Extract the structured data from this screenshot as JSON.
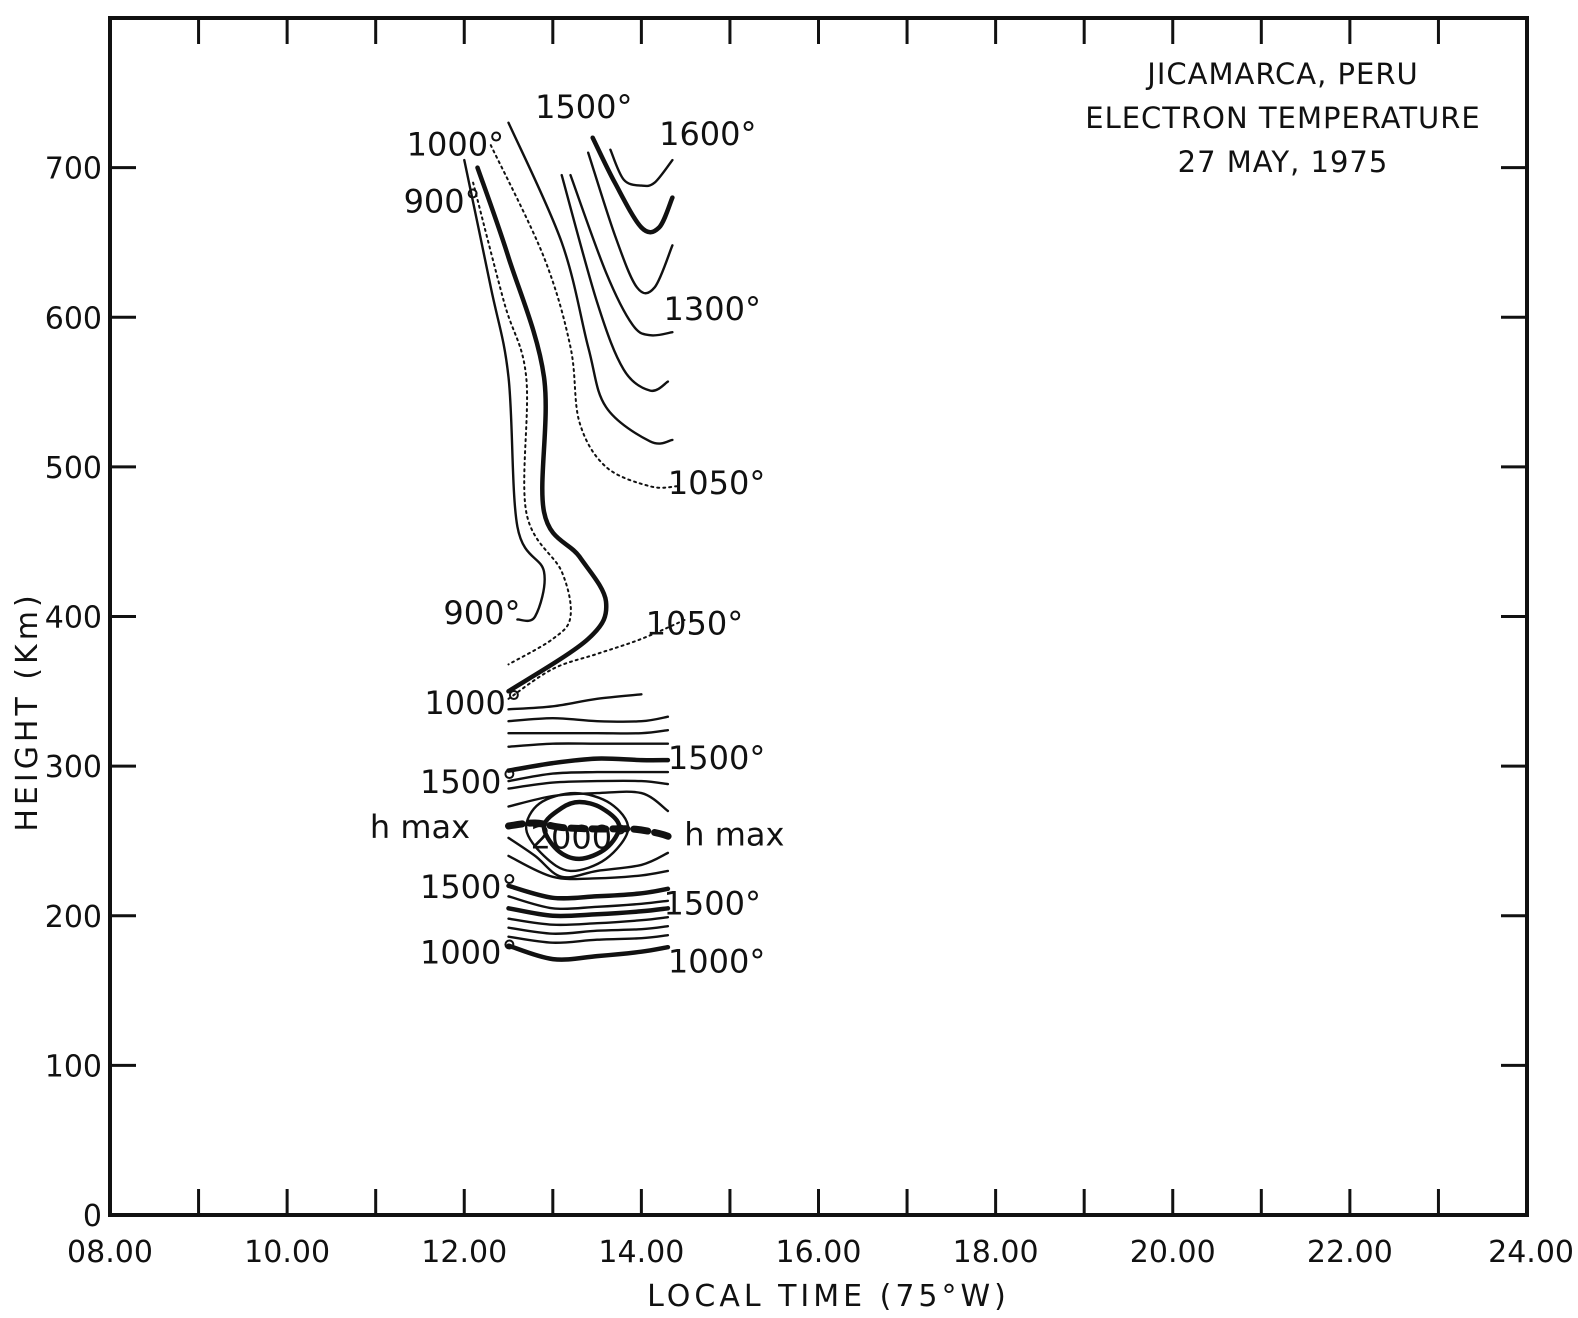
{
  "chart_data": {
    "type": "contour",
    "title": [
      "JICAMARCA, PERU",
      "ELECTRON TEMPERATURE",
      "27 MAY, 1975"
    ],
    "xlabel": "LOCAL TIME (75°W)",
    "ylabel": "HEIGHT (Km)",
    "xlim": [
      8,
      24
    ],
    "ylim": [
      0,
      800
    ],
    "x_ticks": [
      "08.00",
      "10.00",
      "12.00",
      "14.00",
      "16.00",
      "18.00",
      "20.00",
      "22.00",
      "24.00"
    ],
    "y_ticks": [
      "0",
      "100",
      "200",
      "300",
      "400",
      "500",
      "600",
      "700"
    ],
    "x_minor_step": 1,
    "y_minor_step": 100,
    "contours": [
      {
        "label": "900°",
        "style": "solid",
        "points": [
          [
            12.0,
            705
          ],
          [
            12.3,
            620
          ],
          [
            12.5,
            560
          ],
          [
            12.6,
            460
          ],
          [
            12.9,
            430
          ],
          [
            12.8,
            400
          ],
          [
            12.6,
            398
          ]
        ]
      },
      {
        "label": "",
        "style": "dotted",
        "points": [
          [
            12.1,
            690
          ],
          [
            12.45,
            610
          ],
          [
            12.7,
            560
          ],
          [
            12.7,
            470
          ],
          [
            13.1,
            430
          ],
          [
            13.2,
            400
          ],
          [
            13.0,
            385
          ],
          [
            12.5,
            368
          ]
        ]
      },
      {
        "label": "1000°",
        "style": "thick",
        "points": [
          [
            12.15,
            700
          ],
          [
            12.5,
            640
          ],
          [
            12.9,
            560
          ],
          [
            12.9,
            470
          ],
          [
            13.3,
            440
          ],
          [
            13.6,
            410
          ],
          [
            13.4,
            385
          ],
          [
            12.5,
            350
          ]
        ]
      },
      {
        "label": "",
        "style": "dotted",
        "points": [
          [
            12.3,
            715
          ],
          [
            12.9,
            640
          ],
          [
            13.2,
            580
          ],
          [
            13.3,
            530
          ],
          [
            13.6,
            500
          ],
          [
            14.1,
            487
          ],
          [
            14.4,
            487
          ]
        ]
      },
      {
        "label": "",
        "style": "solid",
        "points": [
          [
            12.5,
            730
          ],
          [
            13.1,
            650
          ],
          [
            13.4,
            580
          ],
          [
            13.6,
            540
          ],
          [
            14.1,
            517
          ],
          [
            14.35,
            518
          ]
        ]
      },
      {
        "label": "",
        "style": "solid",
        "points": [
          [
            13.1,
            695
          ],
          [
            13.5,
            610
          ],
          [
            13.8,
            565
          ],
          [
            14.1,
            551
          ],
          [
            14.3,
            557
          ]
        ]
      },
      {
        "label": "1300°",
        "style": "solid",
        "points": [
          [
            13.2,
            695
          ],
          [
            13.6,
            630
          ],
          [
            13.9,
            595
          ],
          [
            14.1,
            588
          ],
          [
            14.35,
            590
          ]
        ]
      },
      {
        "label": "",
        "style": "solid",
        "points": [
          [
            13.4,
            710
          ],
          [
            13.7,
            655
          ],
          [
            13.95,
            620
          ],
          [
            14.15,
            620
          ],
          [
            14.35,
            648
          ]
        ]
      },
      {
        "label": "1500°",
        "style": "thick",
        "points": [
          [
            13.45,
            720
          ],
          [
            13.7,
            690
          ],
          [
            14.0,
            660
          ],
          [
            14.2,
            660
          ],
          [
            14.35,
            680
          ]
        ]
      },
      {
        "label": "1600°",
        "style": "solid",
        "points": [
          [
            13.65,
            712
          ],
          [
            13.8,
            692
          ],
          [
            14.0,
            688
          ],
          [
            14.15,
            690
          ],
          [
            14.35,
            705
          ]
        ]
      },
      {
        "label": "1050°",
        "style": "dotted",
        "points": [
          [
            12.5,
            345
          ],
          [
            13.0,
            365
          ],
          [
            13.5,
            375
          ],
          [
            14.0,
            385
          ],
          [
            14.5,
            398
          ]
        ]
      },
      {
        "label": "",
        "style": "solid",
        "points": [
          [
            12.5,
            338
          ],
          [
            13.0,
            340
          ],
          [
            13.5,
            345
          ],
          [
            14.0,
            348
          ]
        ]
      },
      {
        "label": "",
        "style": "solid",
        "points": [
          [
            12.5,
            330
          ],
          [
            13.0,
            332
          ],
          [
            13.5,
            330
          ],
          [
            14.0,
            330
          ],
          [
            14.3,
            333
          ]
        ]
      },
      {
        "label": "",
        "style": "solid",
        "points": [
          [
            12.5,
            322
          ],
          [
            13.0,
            322
          ],
          [
            13.5,
            322
          ],
          [
            14.0,
            322
          ],
          [
            14.3,
            324
          ]
        ]
      },
      {
        "label": "",
        "style": "solid",
        "points": [
          [
            12.5,
            313
          ],
          [
            13.0,
            315
          ],
          [
            13.5,
            315
          ],
          [
            14.0,
            315
          ],
          [
            14.3,
            315
          ]
        ]
      },
      {
        "label": "1500°",
        "style": "thick",
        "points": [
          [
            12.5,
            297
          ],
          [
            13.0,
            302
          ],
          [
            13.5,
            305
          ],
          [
            14.0,
            304
          ],
          [
            14.3,
            304
          ]
        ]
      },
      {
        "label": "",
        "style": "solid",
        "points": [
          [
            12.5,
            290
          ],
          [
            13.0,
            295
          ],
          [
            13.5,
            296
          ],
          [
            14.0,
            296
          ],
          [
            14.3,
            296
          ]
        ]
      },
      {
        "label": "",
        "style": "solid",
        "points": [
          [
            12.5,
            285
          ],
          [
            13.0,
            289
          ],
          [
            13.5,
            290
          ],
          [
            14.0,
            290
          ],
          [
            14.3,
            288
          ]
        ]
      },
      {
        "label": "",
        "style": "solid",
        "points": [
          [
            12.5,
            273
          ],
          [
            13.0,
            280
          ],
          [
            13.5,
            282
          ],
          [
            14.0,
            282
          ],
          [
            14.3,
            270
          ]
        ]
      },
      {
        "label": "2000°",
        "style": "thick",
        "closed": true,
        "points": [
          [
            12.9,
            260
          ],
          [
            13.1,
            272
          ],
          [
            13.3,
            276
          ],
          [
            13.55,
            272
          ],
          [
            13.75,
            260
          ],
          [
            13.6,
            245
          ],
          [
            13.3,
            238
          ],
          [
            13.05,
            244
          ]
        ]
      },
      {
        "label": "",
        "style": "solid",
        "closed": true,
        "points": [
          [
            12.7,
            258
          ],
          [
            12.85,
            275
          ],
          [
            13.25,
            282
          ],
          [
            13.65,
            275
          ],
          [
            13.85,
            258
          ],
          [
            13.6,
            238
          ],
          [
            13.2,
            230
          ],
          [
            12.9,
            240
          ]
        ]
      },
      {
        "label": "",
        "style": "solid",
        "points": [
          [
            12.5,
            252
          ],
          [
            12.8,
            240
          ],
          [
            13.1,
            226
          ],
          [
            13.5,
            230
          ],
          [
            14.0,
            234
          ],
          [
            14.3,
            242
          ]
        ]
      },
      {
        "label": "",
        "style": "solid",
        "points": [
          [
            12.5,
            240
          ],
          [
            13.0,
            226
          ],
          [
            13.5,
            225
          ],
          [
            14.0,
            227
          ],
          [
            14.3,
            230
          ]
        ]
      },
      {
        "label": "1500°",
        "style": "thick",
        "points": [
          [
            12.5,
            220
          ],
          [
            13.0,
            212
          ],
          [
            13.5,
            213
          ],
          [
            14.0,
            215
          ],
          [
            14.3,
            218
          ]
        ]
      },
      {
        "label": "",
        "style": "solid",
        "points": [
          [
            12.5,
            213
          ],
          [
            13.0,
            205
          ],
          [
            13.5,
            206
          ],
          [
            14.0,
            208
          ],
          [
            14.3,
            210
          ]
        ]
      },
      {
        "label": "",
        "style": "thick",
        "points": [
          [
            12.5,
            205
          ],
          [
            13.0,
            200
          ],
          [
            13.5,
            201
          ],
          [
            14.0,
            203
          ],
          [
            14.3,
            205
          ]
        ]
      },
      {
        "label": "",
        "style": "solid",
        "points": [
          [
            12.5,
            198
          ],
          [
            13.0,
            194
          ],
          [
            13.5,
            195
          ],
          [
            14.0,
            197
          ],
          [
            14.3,
            199
          ]
        ]
      },
      {
        "label": "",
        "style": "solid",
        "points": [
          [
            12.5,
            192
          ],
          [
            13.0,
            188
          ],
          [
            13.5,
            190
          ],
          [
            14.0,
            191
          ],
          [
            14.3,
            193
          ]
        ]
      },
      {
        "label": "",
        "style": "solid",
        "points": [
          [
            12.5,
            186
          ],
          [
            13.0,
            182
          ],
          [
            13.5,
            184
          ],
          [
            14.0,
            185
          ],
          [
            14.3,
            187
          ]
        ]
      },
      {
        "label": "1000°",
        "style": "thick",
        "points": [
          [
            12.5,
            180
          ],
          [
            13.0,
            171
          ],
          [
            13.5,
            173
          ],
          [
            14.0,
            176
          ],
          [
            14.3,
            179
          ]
        ]
      }
    ],
    "hmax": {
      "label": "h max",
      "points": [
        [
          12.5,
          260
        ],
        [
          12.8,
          262
        ],
        [
          13.1,
          259
        ],
        [
          13.5,
          258
        ],
        [
          13.9,
          258
        ],
        [
          14.2,
          255
        ],
        [
          14.35,
          252
        ]
      ]
    },
    "labels": [
      {
        "text": "1000°",
        "x": 11.9,
        "y": 708
      },
      {
        "text": "900°",
        "x": 11.75,
        "y": 670
      },
      {
        "text": "1500°",
        "x": 13.35,
        "y": 733
      },
      {
        "text": "1600°",
        "x": 14.75,
        "y": 715
      },
      {
        "text": "1300°",
        "x": 14.8,
        "y": 598
      },
      {
        "text": "1050°",
        "x": 14.85,
        "y": 482
      },
      {
        "text": "900°",
        "x": 12.2,
        "y": 395
      },
      {
        "text": "1050°",
        "x": 14.6,
        "y": 388
      },
      {
        "text": "1000°",
        "x": 12.1,
        "y": 335
      },
      {
        "text": "1500°",
        "x": 12.05,
        "y": 282
      },
      {
        "text": "1500°",
        "x": 14.85,
        "y": 298
      },
      {
        "text": "h max",
        "x": 11.5,
        "y": 252
      },
      {
        "text": "h max",
        "x": 15.05,
        "y": 247
      },
      {
        "text": "2000°",
        "x": 13.3,
        "y": 245
      },
      {
        "text": "1500°",
        "x": 12.05,
        "y": 212
      },
      {
        "text": "1500°",
        "x": 14.8,
        "y": 201
      },
      {
        "text": "1000°",
        "x": 12.05,
        "y": 168
      },
      {
        "text": "1000°",
        "x": 14.85,
        "y": 162
      }
    ]
  }
}
